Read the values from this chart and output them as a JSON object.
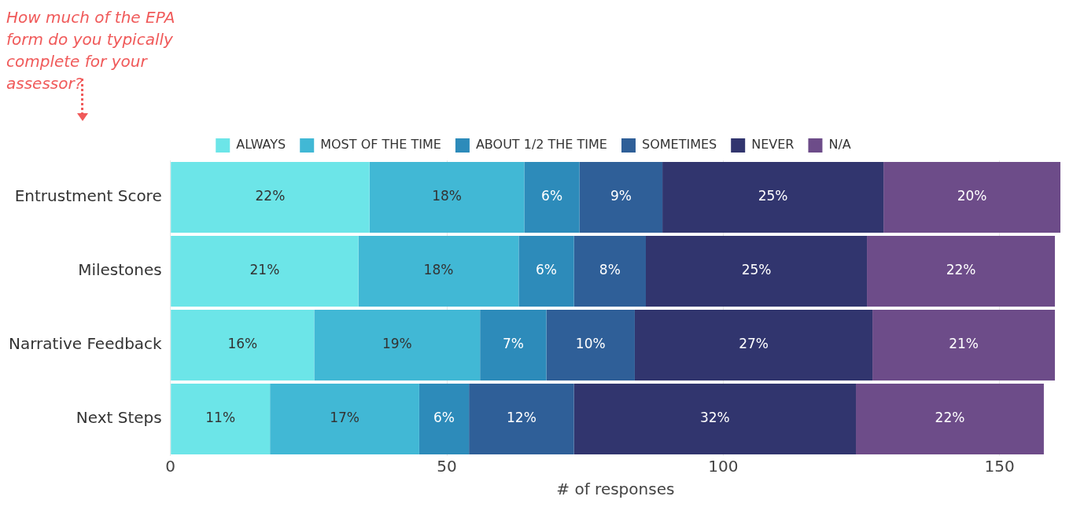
{
  "chart_data": {
    "type": "bar",
    "orientation": "horizontal",
    "stacked": true,
    "xlabel": "# of responses",
    "annotations": [
      "How much of the EPA form do you typically complete for your assessor?",
      "22%",
      "18%",
      "6%",
      "9%",
      "25%",
      "20%",
      "21%",
      "18%",
      "6%",
      "8%",
      "25%",
      "22%",
      "16%",
      "19%",
      "7%",
      "10%",
      "27%",
      "21%",
      "11%",
      "17%",
      "6%",
      "12%",
      "32%",
      "22%"
    ],
    "categories": [
      "Entrustment Score",
      "Milestones",
      "Narrative Feedback",
      "Next Steps"
    ],
    "series": [
      {
        "name": "ALWAYS",
        "color": "#6ce5e8",
        "values": [
          36,
          34,
          26,
          18
        ]
      },
      {
        "name": "MOST OF THE TIME",
        "color": "#41b8d5",
        "values": [
          28,
          29,
          30,
          27
        ]
      },
      {
        "name": "ABOUT 1/2 THE TIME",
        "color": "#2d8bba",
        "values": [
          10,
          10,
          12,
          9
        ]
      },
      {
        "name": "SOMETIMES",
        "color": "#2f5f98",
        "values": [
          15,
          13,
          16,
          19
        ]
      },
      {
        "name": "NEVER",
        "color": "#31356e",
        "values": [
          40,
          40,
          43,
          51
        ]
      },
      {
        "name": "N/A",
        "color": "#6d4c89",
        "values": [
          32,
          34,
          33,
          34
        ]
      }
    ],
    "xlim": [
      0,
      161
    ],
    "xticks": [
      0,
      50,
      100,
      150
    ],
    "grid": "x",
    "legend": "top"
  }
}
